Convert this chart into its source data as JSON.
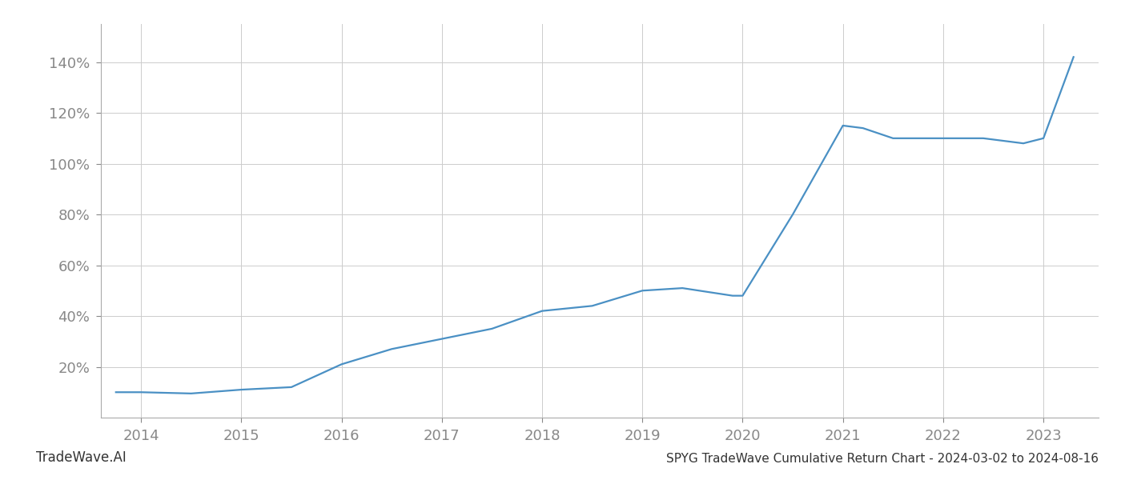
{
  "title": "SPYG TradeWave Cumulative Return Chart - 2024-03-02 to 2024-08-16",
  "watermark": "TradeWave.AI",
  "line_color": "#4a90c4",
  "line_width": 1.6,
  "background_color": "#ffffff",
  "grid_color": "#cccccc",
  "x_years": [
    2013.75,
    2014.0,
    2014.5,
    2015.0,
    2015.5,
    2016.0,
    2016.5,
    2017.0,
    2017.5,
    2018.0,
    2018.5,
    2019.0,
    2019.4,
    2019.9,
    2020.0,
    2020.5,
    2021.0,
    2021.2,
    2021.5,
    2022.0,
    2022.4,
    2022.8,
    2023.0,
    2023.3
  ],
  "y_values": [
    10,
    10,
    9.5,
    11,
    12,
    21,
    27,
    31,
    35,
    42,
    44,
    50,
    51,
    48,
    48,
    80,
    115,
    114,
    110,
    110,
    110,
    108,
    110,
    142
  ],
  "xlim": [
    2013.6,
    2023.55
  ],
  "ylim": [
    0,
    155
  ],
  "yticks": [
    20,
    40,
    60,
    80,
    100,
    120,
    140
  ],
  "xticks": [
    2014,
    2015,
    2016,
    2017,
    2018,
    2019,
    2020,
    2021,
    2022,
    2023
  ],
  "tick_color": "#888888",
  "tick_fontsize": 13,
  "title_fontsize": 11,
  "watermark_fontsize": 12
}
